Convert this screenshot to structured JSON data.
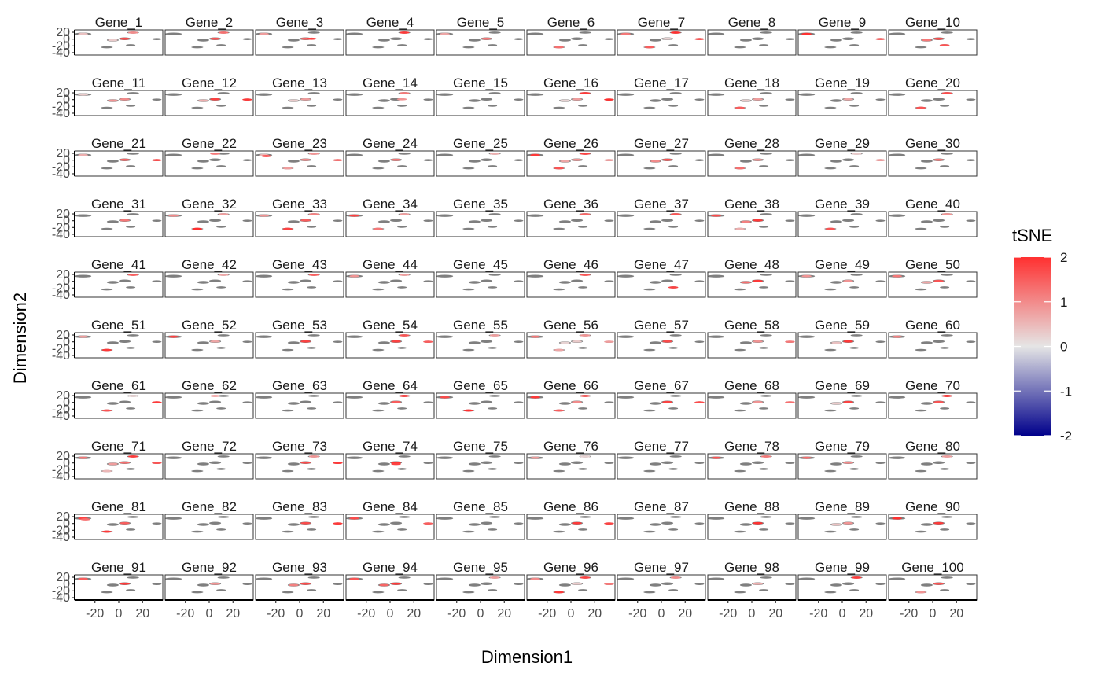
{
  "chart_data": {
    "type": "scatter",
    "layout": "facet-grid",
    "facet_rows": 10,
    "facet_cols": 10,
    "facets": [
      "Gene_1",
      "Gene_2",
      "Gene_3",
      "Gene_4",
      "Gene_5",
      "Gene_6",
      "Gene_7",
      "Gene_8",
      "Gene_9",
      "Gene_10",
      "Gene_11",
      "Gene_12",
      "Gene_13",
      "Gene_14",
      "Gene_15",
      "Gene_16",
      "Gene_17",
      "Gene_18",
      "Gene_19",
      "Gene_20",
      "Gene_21",
      "Gene_22",
      "Gene_23",
      "Gene_24",
      "Gene_25",
      "Gene_26",
      "Gene_27",
      "Gene_28",
      "Gene_29",
      "Gene_30",
      "Gene_31",
      "Gene_32",
      "Gene_33",
      "Gene_34",
      "Gene_35",
      "Gene_36",
      "Gene_37",
      "Gene_38",
      "Gene_39",
      "Gene_40",
      "Gene_41",
      "Gene_42",
      "Gene_43",
      "Gene_44",
      "Gene_45",
      "Gene_46",
      "Gene_47",
      "Gene_48",
      "Gene_49",
      "Gene_50",
      "Gene_51",
      "Gene_52",
      "Gene_53",
      "Gene_54",
      "Gene_55",
      "Gene_56",
      "Gene_57",
      "Gene_58",
      "Gene_59",
      "Gene_60",
      "Gene_61",
      "Gene_62",
      "Gene_63",
      "Gene_64",
      "Gene_65",
      "Gene_66",
      "Gene_67",
      "Gene_68",
      "Gene_69",
      "Gene_70",
      "Gene_71",
      "Gene_72",
      "Gene_73",
      "Gene_74",
      "Gene_75",
      "Gene_76",
      "Gene_77",
      "Gene_78",
      "Gene_79",
      "Gene_80",
      "Gene_81",
      "Gene_82",
      "Gene_83",
      "Gene_84",
      "Gene_85",
      "Gene_86",
      "Gene_87",
      "Gene_88",
      "Gene_89",
      "Gene_90",
      "Gene_91",
      "Gene_92",
      "Gene_93",
      "Gene_94",
      "Gene_95",
      "Gene_96",
      "Gene_97",
      "Gene_98",
      "Gene_99",
      "Gene_100"
    ],
    "xlabel": "Dimension1",
    "ylabel": "Dimension2",
    "xlim": [
      -37,
      37
    ],
    "ylim": [
      -47,
      27
    ],
    "x_ticks": [
      -20,
      0,
      20
    ],
    "x_tick_labels": [
      "-20",
      "0",
      "20"
    ],
    "y_ticks": [
      20,
      0,
      -20,
      -40
    ],
    "y_tick_labels": [
      "20",
      "0",
      "-20",
      "-40"
    ],
    "clusters": [
      {
        "x": -30,
        "y": 15,
        "rx": 7,
        "ry": 4
      },
      {
        "x": 12,
        "y": 19,
        "rx": 5,
        "ry": 3
      },
      {
        "x": -5,
        "y": -3,
        "rx": 5,
        "ry": 4
      },
      {
        "x": 5,
        "y": 1,
        "rx": 5,
        "ry": 4
      },
      {
        "x": 32,
        "y": 0,
        "rx": 4,
        "ry": 3
      },
      {
        "x": -10,
        "y": -24,
        "rx": 5,
        "ry": 3
      },
      {
        "x": 10,
        "y": -18,
        "rx": 4,
        "ry": 3
      }
    ],
    "na_color": "#7f7f7f",
    "legend": {
      "title": "tSNE",
      "min": -2,
      "max": 2,
      "breaks": [
        2,
        1,
        0,
        -1,
        -2
      ],
      "break_labels": [
        "2",
        "1",
        "0",
        "-1",
        "-2"
      ],
      "low_color": "#00008b",
      "mid_color": "#e5e5e5",
      "high_color": "#ff3030",
      "placement": "right"
    },
    "highlights": [
      [
        [
          -30,
          15,
          0.4
        ],
        [
          12,
          19,
          1.0
        ],
        [
          -5,
          -3,
          0.3
        ],
        [
          5,
          1,
          1.7
        ]
      ],
      [
        [
          12,
          19,
          1.3
        ],
        [
          5,
          1,
          1.6
        ]
      ],
      [
        [
          -30,
          15,
          0.8
        ],
        [
          5,
          1,
          1.4
        ],
        [
          10,
          1,
          1.8
        ]
      ],
      [
        [
          12,
          19,
          1.9
        ]
      ],
      [
        [
          -30,
          15,
          0.7
        ],
        [
          5,
          1,
          1.2
        ]
      ],
      [
        [
          -10,
          -24,
          1.3
        ]
      ],
      [
        [
          -30,
          15,
          1.2
        ],
        [
          12,
          19,
          2.0
        ],
        [
          5,
          1,
          0.2
        ],
        [
          32,
          0,
          1.6
        ],
        [
          -10,
          -24,
          1.5
        ]
      ],
      [],
      [
        [
          -30,
          15,
          2.0
        ],
        [
          32,
          0,
          1.4
        ]
      ],
      [
        [
          -5,
          -3,
          1.2
        ],
        [
          5,
          1,
          1.7
        ],
        [
          10,
          -18,
          1.6
        ]
      ],
      [
        [
          -30,
          15,
          0.3
        ],
        [
          -5,
          -3,
          0.9
        ],
        [
          5,
          1,
          1.0
        ]
      ],
      [
        [
          -5,
          -3,
          0.6
        ],
        [
          5,
          1,
          1.8
        ],
        [
          32,
          0,
          1.9
        ]
      ],
      [
        [
          -5,
          -3,
          0.3
        ],
        [
          5,
          1,
          0.8
        ]
      ],
      [
        [
          12,
          19,
          1.2
        ],
        [
          10,
          1,
          0.9
        ]
      ],
      [],
      [
        [
          12,
          19,
          1.9
        ],
        [
          5,
          1,
          0.8
        ],
        [
          -5,
          -3,
          0.2
        ],
        [
          32,
          0,
          2.0
        ]
      ],
      [],
      [
        [
          -5,
          -3,
          0.3
        ],
        [
          5,
          1,
          0.8
        ],
        [
          -10,
          -24,
          1.5
        ]
      ],
      [
        [
          5,
          1,
          0.7
        ]
      ],
      [
        [
          12,
          19,
          1.7
        ],
        [
          -10,
          -24,
          1.6
        ]
      ],
      [
        [
          -30,
          15,
          0.6
        ],
        [
          5,
          1,
          1.4
        ],
        [
          32,
          0,
          1.7
        ]
      ],
      [
        [
          5,
          19,
          1.2
        ]
      ],
      [
        [
          -30,
          15,
          0.5
        ],
        [
          -28,
          12,
          1.7
        ],
        [
          12,
          19,
          0.9
        ],
        [
          5,
          1,
          1.0
        ],
        [
          32,
          0,
          1.3
        ],
        [
          -10,
          -24,
          0.8
        ]
      ],
      [
        [
          5,
          1,
          1.2
        ]
      ],
      [
        [
          12,
          19,
          0.6
        ]
      ],
      [
        [
          -30,
          15,
          1.9
        ],
        [
          12,
          19,
          1.8
        ],
        [
          -5,
          -3,
          0.7
        ],
        [
          5,
          1,
          0.9
        ],
        [
          32,
          0,
          0.8
        ],
        [
          -10,
          -24,
          1.6
        ]
      ],
      [
        [
          5,
          1,
          1.6
        ],
        [
          -5,
          -3,
          1.0
        ]
      ],
      [
        [
          5,
          1,
          0.9
        ],
        [
          -10,
          -24,
          1.3
        ]
      ],
      [
        [
          12,
          19,
          0.3
        ],
        [
          32,
          0,
          0.8
        ]
      ],
      [
        [
          5,
          1,
          1.2
        ]
      ],
      [
        [
          5,
          1,
          1.2
        ]
      ],
      [
        [
          -30,
          15,
          1.0
        ],
        [
          12,
          19,
          0.8
        ],
        [
          -10,
          -24,
          2.0
        ]
      ],
      [
        [
          -30,
          15,
          0.9
        ],
        [
          12,
          19,
          1.1
        ],
        [
          5,
          1,
          1.5
        ],
        [
          -10,
          -24,
          1.8
        ]
      ],
      [
        [
          -30,
          15,
          1.8
        ],
        [
          12,
          19,
          0.8
        ],
        [
          -10,
          -24,
          1.2
        ]
      ],
      [],
      [
        [
          12,
          19,
          1.4
        ]
      ],
      [
        [
          12,
          19,
          1.6
        ]
      ],
      [
        [
          -30,
          15,
          1.7
        ],
        [
          5,
          1,
          1.9
        ],
        [
          -5,
          -3,
          1.1
        ],
        [
          -10,
          -24,
          0.6
        ]
      ],
      [
        [
          -10,
          -24,
          1.6
        ]
      ],
      [
        [
          12,
          19,
          0.9
        ]
      ],
      [
        [
          12,
          19,
          1.5
        ]
      ],
      [
        [
          12,
          19,
          0.7
        ]
      ],
      [
        [
          12,
          19,
          1.5
        ]
      ],
      [
        [
          -30,
          15,
          0.9
        ],
        [
          12,
          19,
          0.8
        ]
      ],
      [],
      [
        [
          12,
          19,
          1.6
        ]
      ],
      [
        [
          10,
          -18,
          1.8
        ]
      ],
      [
        [
          5,
          1,
          1.9
        ],
        [
          -5,
          -3,
          1.3
        ]
      ],
      [
        [
          -30,
          15,
          0.9
        ],
        [
          5,
          1,
          0.9
        ]
      ],
      [
        [
          5,
          1,
          1.6
        ],
        [
          -5,
          -3,
          0.7
        ],
        [
          -30,
          15,
          1.2
        ]
      ],
      [
        [
          -30,
          15,
          0.8
        ],
        [
          -10,
          -24,
          1.9
        ]
      ],
      [
        [
          -30,
          15,
          1.8
        ],
        [
          5,
          1,
          0.7
        ]
      ],
      [
        [
          5,
          1,
          1.8
        ]
      ],
      [
        [
          12,
          19,
          1.6
        ],
        [
          5,
          1,
          1.8
        ],
        [
          32,
          0,
          1.5
        ]
      ],
      [
        [
          12,
          19,
          0.8
        ]
      ],
      [
        [
          -30,
          15,
          1.2
        ],
        [
          12,
          19,
          0.9
        ],
        [
          -5,
          -3,
          0.2
        ],
        [
          5,
          1,
          0.3
        ],
        [
          32,
          0,
          0.8
        ],
        [
          -10,
          -24,
          0.7
        ]
      ],
      [
        [
          5,
          1,
          1.7
        ]
      ],
      [
        [
          5,
          1,
          0.9
        ],
        [
          32,
          0,
          1.2
        ]
      ],
      [
        [
          5,
          1,
          1.9
        ],
        [
          -5,
          -3,
          0.4
        ]
      ],
      [
        [
          -30,
          15,
          1.1
        ]
      ],
      [
        [
          12,
          19,
          0.2
        ],
        [
          32,
          0,
          1.9
        ],
        [
          -10,
          -24,
          1.6
        ]
      ],
      [
        [
          5,
          19,
          0.8
        ]
      ],
      [],
      [
        [
          12,
          19,
          1.9
        ],
        [
          5,
          1,
          1.5
        ]
      ],
      [
        [
          -30,
          15,
          1.7
        ],
        [
          -10,
          -24,
          2.0
        ]
      ],
      [
        [
          -30,
          15,
          1.9
        ],
        [
          12,
          19,
          1.6
        ],
        [
          5,
          1,
          1.0
        ],
        [
          -10,
          -24,
          1.5
        ]
      ],
      [
        [
          5,
          1,
          1.8
        ],
        [
          32,
          0,
          1.7
        ]
      ],
      [
        [
          5,
          1,
          0.9
        ],
        [
          32,
          0,
          1.3
        ]
      ],
      [
        [
          5,
          1,
          1.8
        ],
        [
          -5,
          -3,
          0.3
        ]
      ],
      [
        [
          12,
          19,
          2.0
        ],
        [
          5,
          1,
          1.6
        ]
      ],
      [
        [
          -30,
          15,
          1.2
        ],
        [
          12,
          19,
          1.9
        ],
        [
          5,
          1,
          1.3
        ],
        [
          -5,
          -3,
          0.8
        ],
        [
          32,
          0,
          1.6
        ],
        [
          -10,
          -24,
          0.5
        ]
      ],
      [],
      [
        [
          12,
          19,
          0.9
        ],
        [
          5,
          1,
          1.7
        ],
        [
          32,
          0,
          1.9
        ]
      ],
      [
        [
          5,
          1,
          2.0
        ],
        [
          5,
          -3,
          1.8
        ]
      ],
      [],
      [
        [
          12,
          19,
          0.2
        ],
        [
          -30,
          15,
          0.8
        ]
      ],
      [],
      [
        [
          -30,
          15,
          1.6
        ],
        [
          12,
          19,
          1.2
        ]
      ],
      [
        [
          -30,
          15,
          1.3
        ],
        [
          5,
          1,
          1.0
        ]
      ],
      [
        [
          12,
          19,
          0.8
        ]
      ],
      [
        [
          -30,
          15,
          1.8
        ],
        [
          -28,
          12,
          1.3
        ],
        [
          5,
          1,
          1.5
        ],
        [
          -10,
          -24,
          1.9
        ]
      ],
      [],
      [
        [
          5,
          1,
          1.7
        ],
        [
          32,
          0,
          1.9
        ]
      ],
      [
        [
          -30,
          15,
          1.7
        ],
        [
          32,
          0,
          1.5
        ]
      ],
      [],
      [
        [
          5,
          1,
          1.9
        ],
        [
          32,
          0,
          1.8
        ]
      ],
      [],
      [
        [
          5,
          1,
          2.0
        ]
      ],
      [
        [
          5,
          1,
          0.9
        ],
        [
          -5,
          -3,
          0.4
        ]
      ],
      [
        [
          -30,
          15,
          2.0
        ],
        [
          5,
          1,
          1.9
        ]
      ],
      [
        [
          -30,
          15,
          1.5
        ],
        [
          5,
          1,
          1.9
        ]
      ],
      [
        [
          5,
          1,
          0.9
        ]
      ],
      [
        [
          5,
          1,
          1.7
        ],
        [
          -5,
          -3,
          1.1
        ]
      ],
      [
        [
          -30,
          15,
          1.6
        ],
        [
          5,
          1,
          1.9
        ],
        [
          -5,
          -3,
          1.4
        ]
      ],
      [
        [
          12,
          19,
          0.8
        ]
      ],
      [
        [
          12,
          19,
          1.8
        ],
        [
          -30,
          15,
          1.0
        ],
        [
          32,
          0,
          1.2
        ],
        [
          -10,
          -24,
          1.9
        ],
        [
          5,
          1,
          0.3
        ]
      ],
      [
        [
          12,
          19,
          1.0
        ]
      ],
      [
        [
          5,
          1,
          0.6
        ]
      ],
      [
        [
          12,
          19,
          1.9
        ]
      ],
      [
        [
          5,
          1,
          1.6
        ],
        [
          -10,
          -24,
          0.9
        ]
      ]
    ]
  }
}
